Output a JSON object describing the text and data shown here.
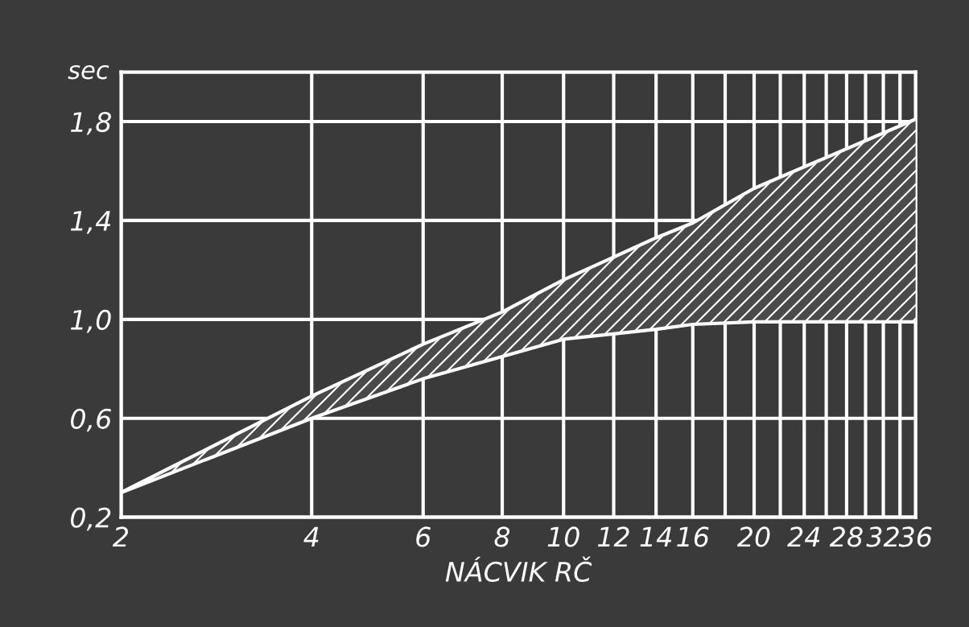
{
  "chart_data": {
    "type": "line",
    "xlabel": "NÁCVIK RČ",
    "ylabel": "sec",
    "log": "x",
    "xlim": [
      2,
      36
    ],
    "ylim": [
      0.2,
      2.0
    ],
    "xticks": [
      2,
      4,
      6,
      8,
      10,
      12,
      14,
      16,
      {
        "value": 18,
        "label": null
      },
      20,
      {
        "value": 22,
        "label": null
      },
      24,
      {
        "value": 26,
        "label": null
      },
      28,
      {
        "value": 30,
        "label": null
      },
      32,
      {
        "value": 34,
        "label": null
      },
      36
    ],
    "yticks": [
      {
        "value": 0.2,
        "label": "0,2"
      },
      {
        "value": 0.6,
        "label": "0,6"
      },
      {
        "value": 1.0,
        "label": "1,0"
      },
      {
        "value": 1.4,
        "label": "1,4"
      },
      {
        "value": 1.8,
        "label": "1,8"
      }
    ],
    "grid": true,
    "x": [
      2,
      4,
      6,
      8,
      10,
      14,
      16,
      20,
      36
    ],
    "series": [
      {
        "color": "#ffffff",
        "values": [
          0.3,
          0.69,
          0.9,
          1.03,
          1.16,
          1.33,
          1.39,
          1.53,
          1.81
        ],
        "lower": [
          0.3,
          0.6,
          0.76,
          0.85,
          0.92,
          0.96,
          0.98,
          0.99,
          0.99
        ],
        "upper": [
          0.3,
          0.69,
          0.9,
          1.03,
          1.16,
          1.33,
          1.39,
          1.53,
          1.81
        ]
      },
      {
        "color": "#ffffff",
        "values": [
          0.3,
          0.6,
          0.76,
          0.85,
          0.92,
          0.96,
          0.98,
          0.99,
          0.99
        ]
      }
    ]
  }
}
